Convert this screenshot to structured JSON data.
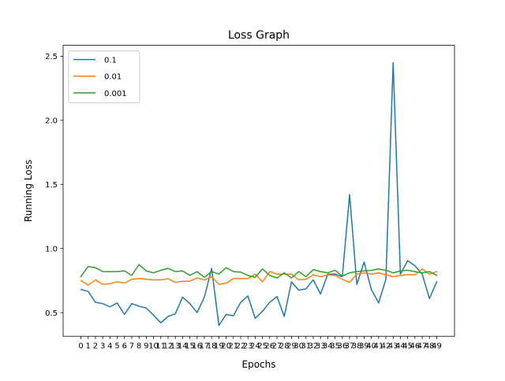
{
  "chart_data": {
    "type": "line",
    "title": "Loss Graph",
    "xlabel": "Epochs",
    "ylabel": "Running Loss",
    "x": [
      0,
      1,
      2,
      3,
      4,
      5,
      6,
      7,
      8,
      9,
      10,
      11,
      12,
      13,
      14,
      15,
      16,
      17,
      18,
      19,
      20,
      21,
      22,
      23,
      24,
      25,
      26,
      27,
      28,
      29,
      30,
      31,
      32,
      33,
      34,
      35,
      36,
      37,
      38,
      39,
      40,
      41,
      42,
      43,
      44,
      45,
      46,
      47,
      48,
      49
    ],
    "x_tick_labels": [
      "0",
      "1",
      "2",
      "3",
      "4",
      "5",
      "6",
      "7",
      "8",
      "9",
      "10",
      "11",
      "12",
      "13",
      "14",
      "15",
      "16",
      "17",
      "18",
      "19",
      "20",
      "21",
      "22",
      "23",
      "24",
      "25",
      "26",
      "27",
      "28",
      "29",
      "30",
      "31",
      "32",
      "33",
      "34",
      "35",
      "36",
      "37",
      "38",
      "39",
      "40",
      "41",
      "42",
      "43",
      "44",
      "45",
      "46",
      "47",
      "48",
      "49"
    ],
    "xlim": [
      -2.45,
      51.45
    ],
    "ylim": [
      0.315,
      2.585
    ],
    "y_ticks": [
      0.5,
      1.0,
      1.5,
      2.0,
      2.5
    ],
    "y_tick_labels": [
      "0.5",
      "1.0",
      "1.5",
      "2.0",
      "2.5"
    ],
    "grid": false,
    "legend_position": "top-left",
    "series": [
      {
        "name": "0.1",
        "color": "#1f77b4",
        "values": [
          0.68,
          0.665,
          0.58,
          0.57,
          0.545,
          0.575,
          0.485,
          0.57,
          0.55,
          0.535,
          0.48,
          0.42,
          0.47,
          0.49,
          0.62,
          0.57,
          0.5,
          0.62,
          0.845,
          0.4,
          0.485,
          0.475,
          0.58,
          0.63,
          0.455,
          0.51,
          0.58,
          0.625,
          0.47,
          0.74,
          0.675,
          0.685,
          0.755,
          0.645,
          0.8,
          0.8,
          0.78,
          1.42,
          0.72,
          0.895,
          0.68,
          0.575,
          0.76,
          2.45,
          0.8,
          0.905,
          0.865,
          0.8,
          0.61,
          0.74
        ]
      },
      {
        "name": "0.01",
        "color": "#ff7f0e",
        "values": [
          0.75,
          0.715,
          0.755,
          0.72,
          0.725,
          0.74,
          0.73,
          0.76,
          0.765,
          0.76,
          0.755,
          0.755,
          0.765,
          0.735,
          0.745,
          0.745,
          0.77,
          0.755,
          0.78,
          0.72,
          0.73,
          0.765,
          0.765,
          0.765,
          0.8,
          0.74,
          0.82,
          0.8,
          0.8,
          0.8,
          0.755,
          0.76,
          0.795,
          0.78,
          0.795,
          0.79,
          0.76,
          0.735,
          0.8,
          0.81,
          0.8,
          0.81,
          0.795,
          0.78,
          0.79,
          0.795,
          0.795,
          0.84,
          0.8,
          0.82
        ]
      },
      {
        "name": "0.001",
        "color": "#2ca02c",
        "values": [
          0.78,
          0.86,
          0.85,
          0.82,
          0.82,
          0.82,
          0.825,
          0.79,
          0.875,
          0.825,
          0.81,
          0.83,
          0.845,
          0.82,
          0.825,
          0.79,
          0.82,
          0.775,
          0.82,
          0.8,
          0.85,
          0.82,
          0.815,
          0.79,
          0.775,
          0.84,
          0.79,
          0.77,
          0.81,
          0.77,
          0.82,
          0.78,
          0.835,
          0.82,
          0.81,
          0.83,
          0.785,
          0.81,
          0.82,
          0.825,
          0.83,
          0.84,
          0.83,
          0.81,
          0.825,
          0.83,
          0.82,
          0.81,
          0.82,
          0.79
        ]
      }
    ]
  }
}
